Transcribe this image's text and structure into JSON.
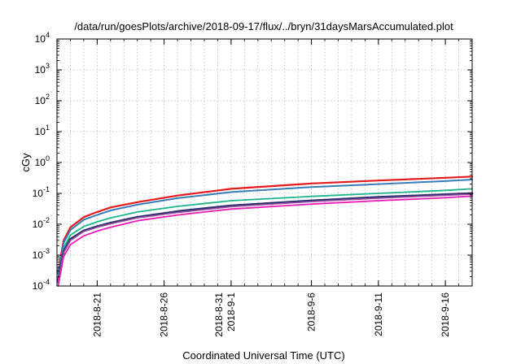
{
  "chart_data": {
    "type": "line",
    "title": "/data/run/goesPlots/archive/2018-09-17/flux/../bryn/31daysMarsAccumulated.plot",
    "xlabel": "Coordinated Universal Time (UTC)",
    "ylabel": "cGy",
    "x_range": [
      "2018-08-18",
      "2018-09-18"
    ],
    "y_scale": "log",
    "ylim": [
      0.0001,
      10000
    ],
    "y_ticks": [
      {
        "value": 0.0001,
        "base": "10",
        "exp": "-4"
      },
      {
        "value": 0.001,
        "base": "10",
        "exp": "-3"
      },
      {
        "value": 0.01,
        "base": "10",
        "exp": "-2"
      },
      {
        "value": 0.1,
        "base": "10",
        "exp": "-1"
      },
      {
        "value": 1,
        "base": "10",
        "exp": "0"
      },
      {
        "value": 10,
        "base": "10",
        "exp": "1"
      },
      {
        "value": 100,
        "base": "10",
        "exp": "2"
      },
      {
        "value": 1000,
        "base": "10",
        "exp": "3"
      },
      {
        "value": 10000,
        "base": "10",
        "exp": "4"
      }
    ],
    "x_ticks": [
      {
        "date": "2018-08-21",
        "lines": [
          "2018-8-21"
        ]
      },
      {
        "date": "2018-08-26",
        "lines": [
          "2018-8-26"
        ]
      },
      {
        "date": "2018-08-31",
        "lines": [
          "2018-8-31",
          "2018-9-1"
        ]
      },
      {
        "date": "2018-09-06",
        "lines": [
          "2018-9-6"
        ]
      },
      {
        "date": "2018-09-11",
        "lines": [
          "2018-9-11"
        ]
      },
      {
        "date": "2018-09-16",
        "lines": [
          "2018-9-16"
        ]
      }
    ],
    "grid": true,
    "series": [
      {
        "color": "#e41a1c",
        "width": 2.2,
        "x": [
          "2018-08-18T02:00",
          "2018-08-18T12:00",
          "2018-08-19T00:00",
          "2018-08-20T00:00",
          "2018-08-21T00:00",
          "2018-08-22T00:00",
          "2018-08-24T00:00",
          "2018-08-27T00:00",
          "2018-08-31T00:00",
          "2018-09-06T00:00",
          "2018-09-11T00:00",
          "2018-09-16T00:00",
          "2018-09-18T00:00"
        ],
        "y": [
          0.0003,
          0.003,
          0.008,
          0.017,
          0.025,
          0.035,
          0.052,
          0.085,
          0.14,
          0.21,
          0.26,
          0.32,
          0.35
        ]
      },
      {
        "color": "#377eb8",
        "width": 2.0,
        "x": [
          "2018-08-18T02:00",
          "2018-08-18T12:00",
          "2018-08-19T00:00",
          "2018-08-20T00:00",
          "2018-08-21T00:00",
          "2018-08-22T00:00",
          "2018-08-24T00:00",
          "2018-08-27T00:00",
          "2018-08-31T00:00",
          "2018-09-06T00:00",
          "2018-09-11T00:00",
          "2018-09-16T00:00",
          "2018-09-18T00:00"
        ],
        "y": [
          0.00025,
          0.0025,
          0.0065,
          0.014,
          0.02,
          0.028,
          0.043,
          0.07,
          0.11,
          0.16,
          0.2,
          0.25,
          0.28
        ]
      },
      {
        "color": "#1bb58c",
        "width": 1.8,
        "x": [
          "2018-08-18T02:00",
          "2018-08-18T12:00",
          "2018-08-19T00:00",
          "2018-08-20T00:00",
          "2018-08-21T00:00",
          "2018-08-22T00:00",
          "2018-08-24T00:00",
          "2018-08-27T00:00",
          "2018-08-31T00:00",
          "2018-09-06T00:00",
          "2018-09-11T00:00",
          "2018-09-16T00:00",
          "2018-09-18T00:00"
        ],
        "y": [
          0.00018,
          0.0017,
          0.0045,
          0.0085,
          0.012,
          0.016,
          0.025,
          0.038,
          0.058,
          0.08,
          0.1,
          0.125,
          0.14
        ]
      },
      {
        "color": "#2b2f6b",
        "width": 2.8,
        "x": [
          "2018-08-18T02:00",
          "2018-08-18T12:00",
          "2018-08-19T00:00",
          "2018-08-20T00:00",
          "2018-08-21T00:00",
          "2018-08-22T00:00",
          "2018-08-24T00:00",
          "2018-08-27T00:00",
          "2018-08-31T00:00",
          "2018-09-06T00:00",
          "2018-09-11T00:00",
          "2018-09-16T00:00",
          "2018-09-18T00:00"
        ],
        "y": [
          0.00014,
          0.0013,
          0.0033,
          0.0062,
          0.0085,
          0.011,
          0.017,
          0.026,
          0.04,
          0.058,
          0.075,
          0.092,
          0.1
        ]
      },
      {
        "color": "#984ea3",
        "width": 1.6,
        "x": [
          "2018-08-18T02:00",
          "2018-08-18T12:00",
          "2018-08-19T00:00",
          "2018-08-20T00:00",
          "2018-08-21T00:00",
          "2018-08-22T00:00",
          "2018-08-24T00:00",
          "2018-08-27T00:00",
          "2018-08-31T00:00",
          "2018-09-06T00:00",
          "2018-09-11T00:00",
          "2018-09-16T00:00",
          "2018-09-18T00:00"
        ],
        "y": [
          0.00013,
          0.0012,
          0.003,
          0.0058,
          0.008,
          0.0103,
          0.016,
          0.024,
          0.037,
          0.054,
          0.07,
          0.086,
          0.094
        ]
      },
      {
        "color": "#ee1ab8",
        "width": 1.8,
        "x": [
          "2018-08-18T02:00",
          "2018-08-18T12:00",
          "2018-08-19T00:00",
          "2018-08-20T00:00",
          "2018-08-21T00:00",
          "2018-08-22T00:00",
          "2018-08-24T00:00",
          "2018-08-27T00:00",
          "2018-08-31T00:00",
          "2018-09-06T00:00",
          "2018-09-11T00:00",
          "2018-09-16T00:00",
          "2018-09-18T00:00"
        ],
        "y": [
          0.0001,
          0.0009,
          0.0022,
          0.0042,
          0.006,
          0.008,
          0.013,
          0.02,
          0.031,
          0.045,
          0.058,
          0.072,
          0.082
        ]
      }
    ]
  }
}
